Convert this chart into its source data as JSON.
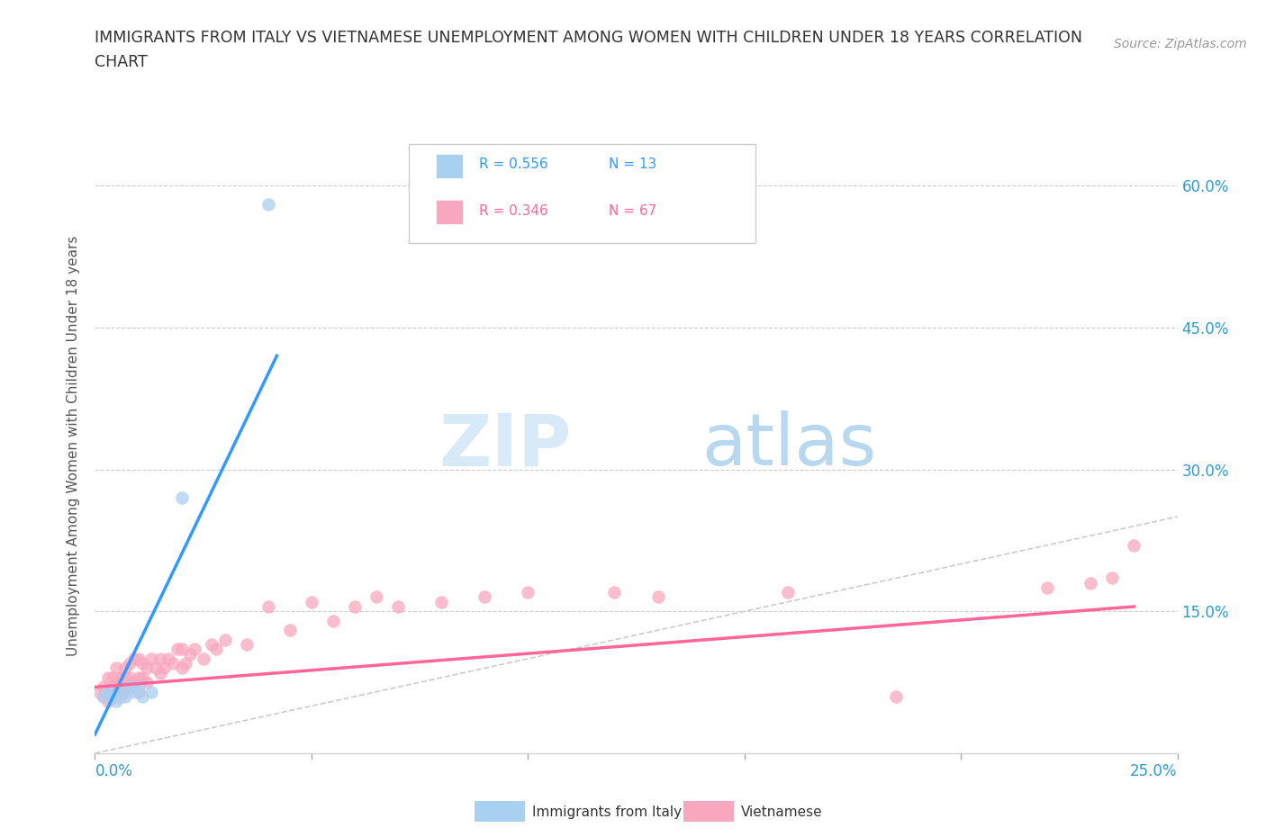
{
  "title_line1": "IMMIGRANTS FROM ITALY VS VIETNAMESE UNEMPLOYMENT AMONG WOMEN WITH CHILDREN UNDER 18 YEARS CORRELATION",
  "title_line2": "CHART",
  "source": "Source: ZipAtlas.com",
  "ylabel": "Unemployment Among Women with Children Under 18 years",
  "R1": 0.556,
  "N1": 13,
  "R2": 0.346,
  "N2": 67,
  "xlim": [
    0.0,
    0.25
  ],
  "ylim": [
    0.0,
    0.65
  ],
  "yticks": [
    0.0,
    0.15,
    0.3,
    0.45,
    0.6
  ],
  "ytick_labels": [
    "",
    "15.0%",
    "30.0%",
    "45.0%",
    "60.0%"
  ],
  "xtick_pos": [
    0.0,
    0.05,
    0.1,
    0.15,
    0.2,
    0.25
  ],
  "color_italy": "#a8d0f0",
  "color_viet": "#f8a8be",
  "color_italy_line": "#3399ff",
  "color_viet_line": "#ff6699",
  "color_diag": "#cccccc",
  "legend_label1": "Immigrants from Italy",
  "legend_label2": "Vietnamese",
  "italy_x": [
    0.002,
    0.003,
    0.004,
    0.005,
    0.006,
    0.007,
    0.008,
    0.009,
    0.01,
    0.011,
    0.013,
    0.02,
    0.04
  ],
  "italy_y": [
    0.06,
    0.065,
    0.06,
    0.055,
    0.065,
    0.06,
    0.07,
    0.065,
    0.07,
    0.06,
    0.065,
    0.27,
    0.58
  ],
  "viet_x": [
    0.001,
    0.002,
    0.002,
    0.003,
    0.003,
    0.003,
    0.004,
    0.004,
    0.004,
    0.005,
    0.005,
    0.005,
    0.005,
    0.006,
    0.006,
    0.006,
    0.007,
    0.007,
    0.007,
    0.008,
    0.008,
    0.008,
    0.009,
    0.009,
    0.01,
    0.01,
    0.01,
    0.011,
    0.011,
    0.012,
    0.012,
    0.013,
    0.014,
    0.015,
    0.015,
    0.016,
    0.017,
    0.018,
    0.019,
    0.02,
    0.02,
    0.021,
    0.022,
    0.023,
    0.025,
    0.027,
    0.028,
    0.03,
    0.035,
    0.04,
    0.045,
    0.05,
    0.055,
    0.06,
    0.065,
    0.07,
    0.08,
    0.09,
    0.1,
    0.12,
    0.13,
    0.16,
    0.185,
    0.22,
    0.23,
    0.235,
    0.24
  ],
  "viet_y": [
    0.065,
    0.06,
    0.07,
    0.055,
    0.065,
    0.08,
    0.06,
    0.07,
    0.08,
    0.06,
    0.07,
    0.075,
    0.09,
    0.06,
    0.07,
    0.08,
    0.065,
    0.08,
    0.09,
    0.07,
    0.08,
    0.095,
    0.075,
    0.1,
    0.065,
    0.08,
    0.1,
    0.08,
    0.095,
    0.075,
    0.09,
    0.1,
    0.09,
    0.085,
    0.1,
    0.09,
    0.1,
    0.095,
    0.11,
    0.09,
    0.11,
    0.095,
    0.105,
    0.11,
    0.1,
    0.115,
    0.11,
    0.12,
    0.115,
    0.155,
    0.13,
    0.16,
    0.14,
    0.155,
    0.165,
    0.155,
    0.16,
    0.165,
    0.17,
    0.17,
    0.165,
    0.17,
    0.06,
    0.175,
    0.18,
    0.185,
    0.22
  ],
  "italy_trend_x": [
    0.0,
    0.042
  ],
  "italy_trend_y": [
    0.02,
    0.42
  ],
  "viet_trend_x": [
    0.0,
    0.24
  ],
  "viet_trend_y": [
    0.07,
    0.155
  ]
}
